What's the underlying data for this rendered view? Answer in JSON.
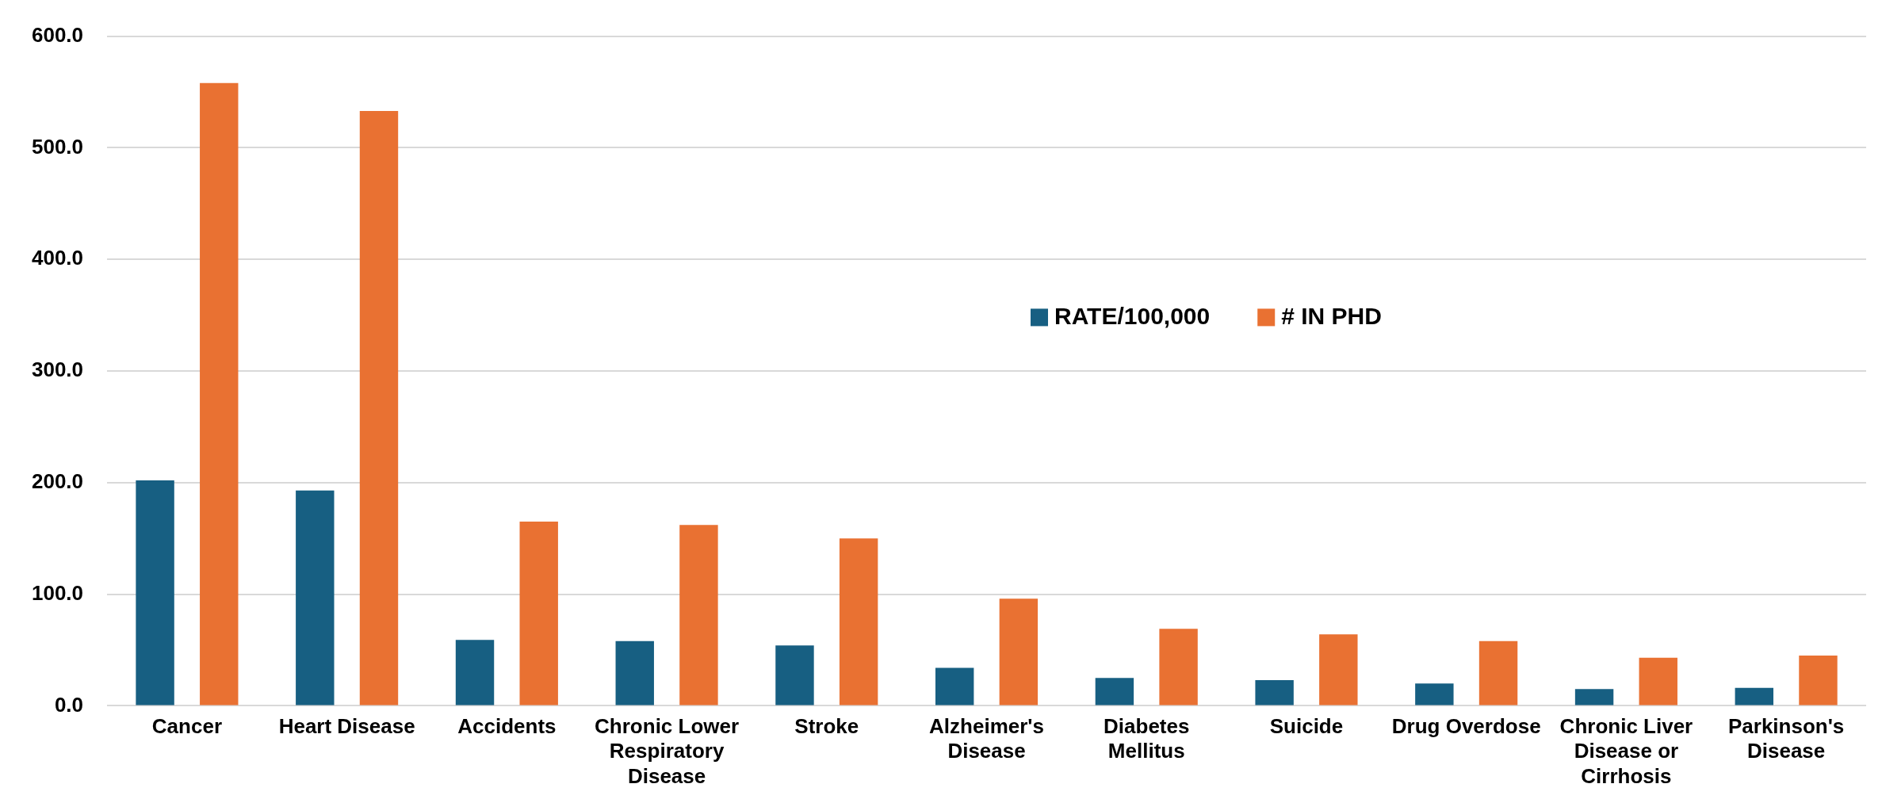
{
  "chart_data": {
    "type": "bar",
    "categories": [
      "Cancer",
      "Heart Disease",
      "Accidents",
      "Chronic Lower Respiratory Disease",
      "Stroke",
      "Alzheimer's Disease",
      "Diabetes Mellitus",
      "Suicide",
      "Drug Overdose",
      "Chronic Liver Disease or Cirrhosis",
      "Parkinson's Disease"
    ],
    "series": [
      {
        "name": "RATE/100,000",
        "color": "#175f82",
        "values": [
          202,
          193,
          59,
          58,
          54,
          34,
          25,
          23,
          20,
          15,
          16
        ]
      },
      {
        "name": "# IN PHD",
        "color": "#e97132",
        "values": [
          558,
          533,
          165,
          162,
          150,
          96,
          69,
          64,
          58,
          43,
          45
        ]
      }
    ],
    "ylim": [
      0,
      600
    ],
    "yticks": [
      {
        "value": 0,
        "label": "0.0"
      },
      {
        "value": 100,
        "label": "100.0"
      },
      {
        "value": 200,
        "label": "200.0"
      },
      {
        "value": 300,
        "label": "300.0"
      },
      {
        "value": 400,
        "label": "400.0"
      },
      {
        "value": 500,
        "label": "500.0"
      },
      {
        "value": 600,
        "label": "600.0"
      }
    ],
    "grid": "y",
    "legend": "top"
  }
}
